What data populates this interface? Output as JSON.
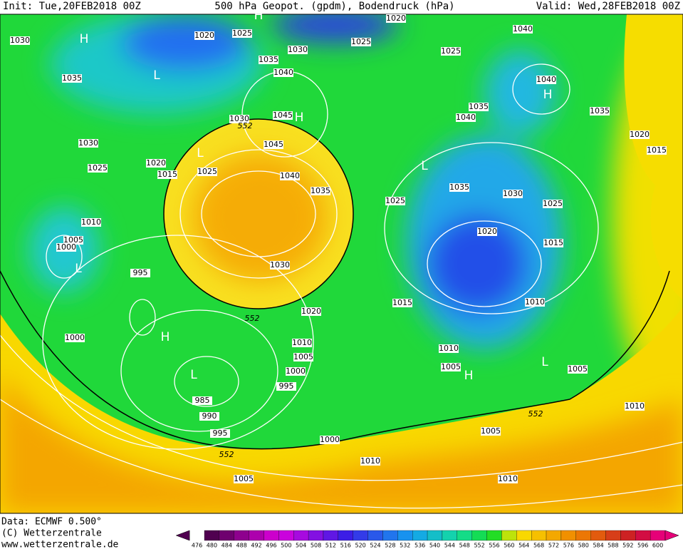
{
  "header": {
    "init": "Init: Tue,20FEB2018 00Z",
    "title": "500 hPa Geopot. (gpdm), Bodendruck (hPa)",
    "valid": "Valid: Wed,28FEB2018 00Z"
  },
  "isobar_labels": [
    1030,
    1035,
    1030,
    1025,
    1020,
    1015,
    1010,
    1005,
    1000,
    995,
    1000,
    1020,
    1025,
    1030,
    1035,
    1040,
    1045,
    1030,
    1045,
    1025,
    1040,
    1035,
    1030,
    1020,
    1010,
    1005,
    1000,
    995,
    985,
    990,
    995,
    1000,
    1005,
    1010,
    1020,
    1025,
    1025,
    1040,
    1040,
    1035,
    1040,
    1035,
    1020,
    1015,
    1025,
    1035,
    1030,
    1025,
    1020,
    1015,
    1015,
    1010,
    1010,
    1005,
    1005,
    1005,
    1010,
    1010
  ],
  "contour_labels": [
    552,
    552,
    552,
    552
  ],
  "pressure_centers": [
    "H",
    "L",
    "H",
    "H",
    "L",
    "L",
    "H",
    "L",
    "H",
    "L",
    "H",
    "L"
  ],
  "footer": {
    "data": "Data: ECMWF  0.500°",
    "copyright": "(C) Wetterzentrale",
    "url": "www.wetterzentrale.de"
  },
  "colorbar": {
    "levels": [
      476,
      480,
      484,
      488,
      492,
      496,
      500,
      504,
      508,
      512,
      516,
      520,
      524,
      528,
      532,
      536,
      540,
      544,
      548,
      552,
      556,
      560,
      564,
      568,
      572,
      576,
      580,
      584,
      588,
      592,
      596,
      600
    ]
  }
}
